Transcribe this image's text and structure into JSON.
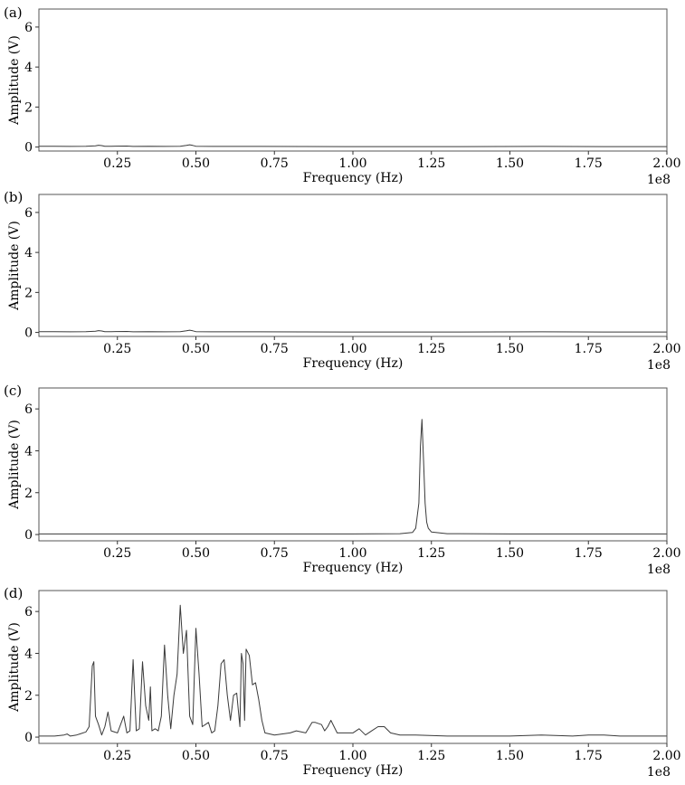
{
  "chart_data": [
    {
      "type": "line",
      "panel_label": "(a)",
      "xlabel": "Frequency (Hz)",
      "ylabel": "Amplitude (V)",
      "x_offset_label": "1e8",
      "xlim": [
        0.0,
        2.0
      ],
      "ylim": [
        -0.2,
        6.9
      ],
      "xticks": [
        0.25,
        0.5,
        0.75,
        1.0,
        1.25,
        1.5,
        1.75,
        2.0
      ],
      "xtick_labels": [
        "0.25",
        "0.50",
        "0.75",
        "1.00",
        "1.25",
        "1.50",
        "1.75",
        "2.00"
      ],
      "yticks": [
        0,
        2,
        4,
        6
      ],
      "ytick_labels": [
        "0",
        "2",
        "4",
        "6"
      ],
      "grid": false,
      "x_unit_scale": 100000000.0,
      "series": [
        {
          "x": [
            0.0,
            0.05,
            0.1,
            0.15,
            0.18,
            0.19,
            0.2,
            0.21,
            0.23,
            0.28,
            0.3,
            0.35,
            0.4,
            0.45,
            0.47,
            0.48,
            0.49,
            0.5,
            0.55,
            0.7,
            1.0,
            1.3,
            1.6,
            1.8,
            2.0
          ],
          "y": [
            0.04,
            0.04,
            0.03,
            0.04,
            0.06,
            0.09,
            0.07,
            0.04,
            0.04,
            0.05,
            0.03,
            0.04,
            0.03,
            0.04,
            0.08,
            0.11,
            0.08,
            0.04,
            0.03,
            0.03,
            0.02,
            0.02,
            0.03,
            0.02,
            0.02
          ]
        }
      ]
    },
    {
      "type": "line",
      "panel_label": "(b)",
      "xlabel": "Frequency (Hz)",
      "ylabel": "Amplitude (V)",
      "x_offset_label": "1e8",
      "xlim": [
        0.0,
        2.0
      ],
      "ylim": [
        -0.2,
        6.9
      ],
      "xticks": [
        0.25,
        0.5,
        0.75,
        1.0,
        1.25,
        1.5,
        1.75,
        2.0
      ],
      "xtick_labels": [
        "0.25",
        "0.50",
        "0.75",
        "1.00",
        "1.25",
        "1.50",
        "1.75",
        "2.00"
      ],
      "yticks": [
        0,
        2,
        4,
        6
      ],
      "ytick_labels": [
        "0",
        "2",
        "4",
        "6"
      ],
      "grid": false,
      "x_unit_scale": 100000000.0,
      "series": [
        {
          "x": [
            0.0,
            0.05,
            0.1,
            0.15,
            0.18,
            0.19,
            0.2,
            0.21,
            0.23,
            0.28,
            0.3,
            0.35,
            0.4,
            0.45,
            0.47,
            0.48,
            0.49,
            0.5,
            0.55,
            0.7,
            1.0,
            1.3,
            1.6,
            1.8,
            2.0
          ],
          "y": [
            0.04,
            0.04,
            0.03,
            0.04,
            0.06,
            0.09,
            0.07,
            0.04,
            0.04,
            0.05,
            0.03,
            0.04,
            0.03,
            0.04,
            0.08,
            0.11,
            0.08,
            0.04,
            0.03,
            0.03,
            0.02,
            0.02,
            0.03,
            0.02,
            0.02
          ]
        }
      ]
    },
    {
      "type": "line",
      "panel_label": "(c)",
      "xlabel": "Frequency (Hz)",
      "ylabel": "Amplitude (V)",
      "x_offset_label": "1e8",
      "xlim": [
        0.0,
        2.0
      ],
      "ylim": [
        -0.3,
        7.0
      ],
      "xticks": [
        0.25,
        0.5,
        0.75,
        1.0,
        1.25,
        1.5,
        1.75,
        2.0
      ],
      "xtick_labels": [
        "0.25",
        "0.50",
        "0.75",
        "1.00",
        "1.25",
        "1.50",
        "1.75",
        "2.00"
      ],
      "yticks": [
        0,
        2,
        4,
        6
      ],
      "ytick_labels": [
        "0",
        "2",
        "4",
        "6"
      ],
      "grid": false,
      "x_unit_scale": 100000000.0,
      "series": [
        {
          "x": [
            0.0,
            0.5,
            1.0,
            1.15,
            1.19,
            1.2,
            1.21,
            1.215,
            1.22,
            1.225,
            1.23,
            1.235,
            1.24,
            1.25,
            1.3,
            1.5,
            2.0
          ],
          "y": [
            0.03,
            0.03,
            0.03,
            0.04,
            0.1,
            0.3,
            1.5,
            4.2,
            5.5,
            3.5,
            1.5,
            0.6,
            0.3,
            0.12,
            0.04,
            0.03,
            0.03
          ]
        }
      ]
    },
    {
      "type": "line",
      "panel_label": "(d)",
      "xlabel": "Frequency (Hz)",
      "ylabel": "Amplitude (V)",
      "x_offset_label": "1e8",
      "xlim": [
        0.0,
        2.0
      ],
      "ylim": [
        -0.3,
        7.0
      ],
      "xticks": [
        0.25,
        0.5,
        0.75,
        1.0,
        1.25,
        1.5,
        1.75,
        2.0
      ],
      "xtick_labels": [
        "0.25",
        "0.50",
        "0.75",
        "1.00",
        "1.25",
        "1.50",
        "1.75",
        "2.00"
      ],
      "yticks": [
        0,
        2,
        4,
        6
      ],
      "ytick_labels": [
        "0",
        "2",
        "4",
        "6"
      ],
      "grid": false,
      "x_unit_scale": 100000000.0,
      "series": [
        {
          "x": [
            0.0,
            0.05,
            0.08,
            0.09,
            0.1,
            0.12,
            0.13,
            0.15,
            0.16,
            0.17,
            0.175,
            0.18,
            0.19,
            0.2,
            0.21,
            0.22,
            0.23,
            0.25,
            0.27,
            0.28,
            0.29,
            0.3,
            0.31,
            0.32,
            0.33,
            0.34,
            0.35,
            0.355,
            0.36,
            0.37,
            0.38,
            0.39,
            0.4,
            0.41,
            0.42,
            0.43,
            0.44,
            0.45,
            0.46,
            0.47,
            0.48,
            0.49,
            0.5,
            0.51,
            0.52,
            0.53,
            0.54,
            0.55,
            0.56,
            0.57,
            0.58,
            0.59,
            0.6,
            0.61,
            0.62,
            0.63,
            0.64,
            0.645,
            0.65,
            0.655,
            0.66,
            0.67,
            0.68,
            0.69,
            0.7,
            0.71,
            0.72,
            0.75,
            0.8,
            0.82,
            0.85,
            0.87,
            0.88,
            0.9,
            0.91,
            0.92,
            0.93,
            0.95,
            1.0,
            1.02,
            1.04,
            1.06,
            1.08,
            1.1,
            1.12,
            1.15,
            1.2,
            1.3,
            1.4,
            1.5,
            1.6,
            1.7,
            1.75,
            1.8,
            1.85,
            1.9,
            2.0
          ],
          "y": [
            0.05,
            0.05,
            0.1,
            0.15,
            0.05,
            0.1,
            0.15,
            0.25,
            0.5,
            3.4,
            3.6,
            1.0,
            0.6,
            0.1,
            0.5,
            1.2,
            0.3,
            0.2,
            1.0,
            0.2,
            0.3,
            3.7,
            0.3,
            0.4,
            3.6,
            1.5,
            0.8,
            2.4,
            0.3,
            0.4,
            0.3,
            1.0,
            4.4,
            2.0,
            0.4,
            2.0,
            3.0,
            6.3,
            4.0,
            5.1,
            1.0,
            0.6,
            5.2,
            3.0,
            0.5,
            0.6,
            0.7,
            0.2,
            0.3,
            1.5,
            3.5,
            3.7,
            2.0,
            0.8,
            2.0,
            2.1,
            0.5,
            4.0,
            3.5,
            0.8,
            4.2,
            3.9,
            2.5,
            2.6,
            1.8,
            0.8,
            0.2,
            0.1,
            0.2,
            0.3,
            0.2,
            0.7,
            0.7,
            0.6,
            0.3,
            0.5,
            0.8,
            0.2,
            0.2,
            0.4,
            0.1,
            0.3,
            0.5,
            0.5,
            0.2,
            0.1,
            0.1,
            0.05,
            0.05,
            0.05,
            0.1,
            0.05,
            0.1,
            0.1,
            0.05,
            0.05,
            0.05
          ]
        }
      ]
    }
  ]
}
